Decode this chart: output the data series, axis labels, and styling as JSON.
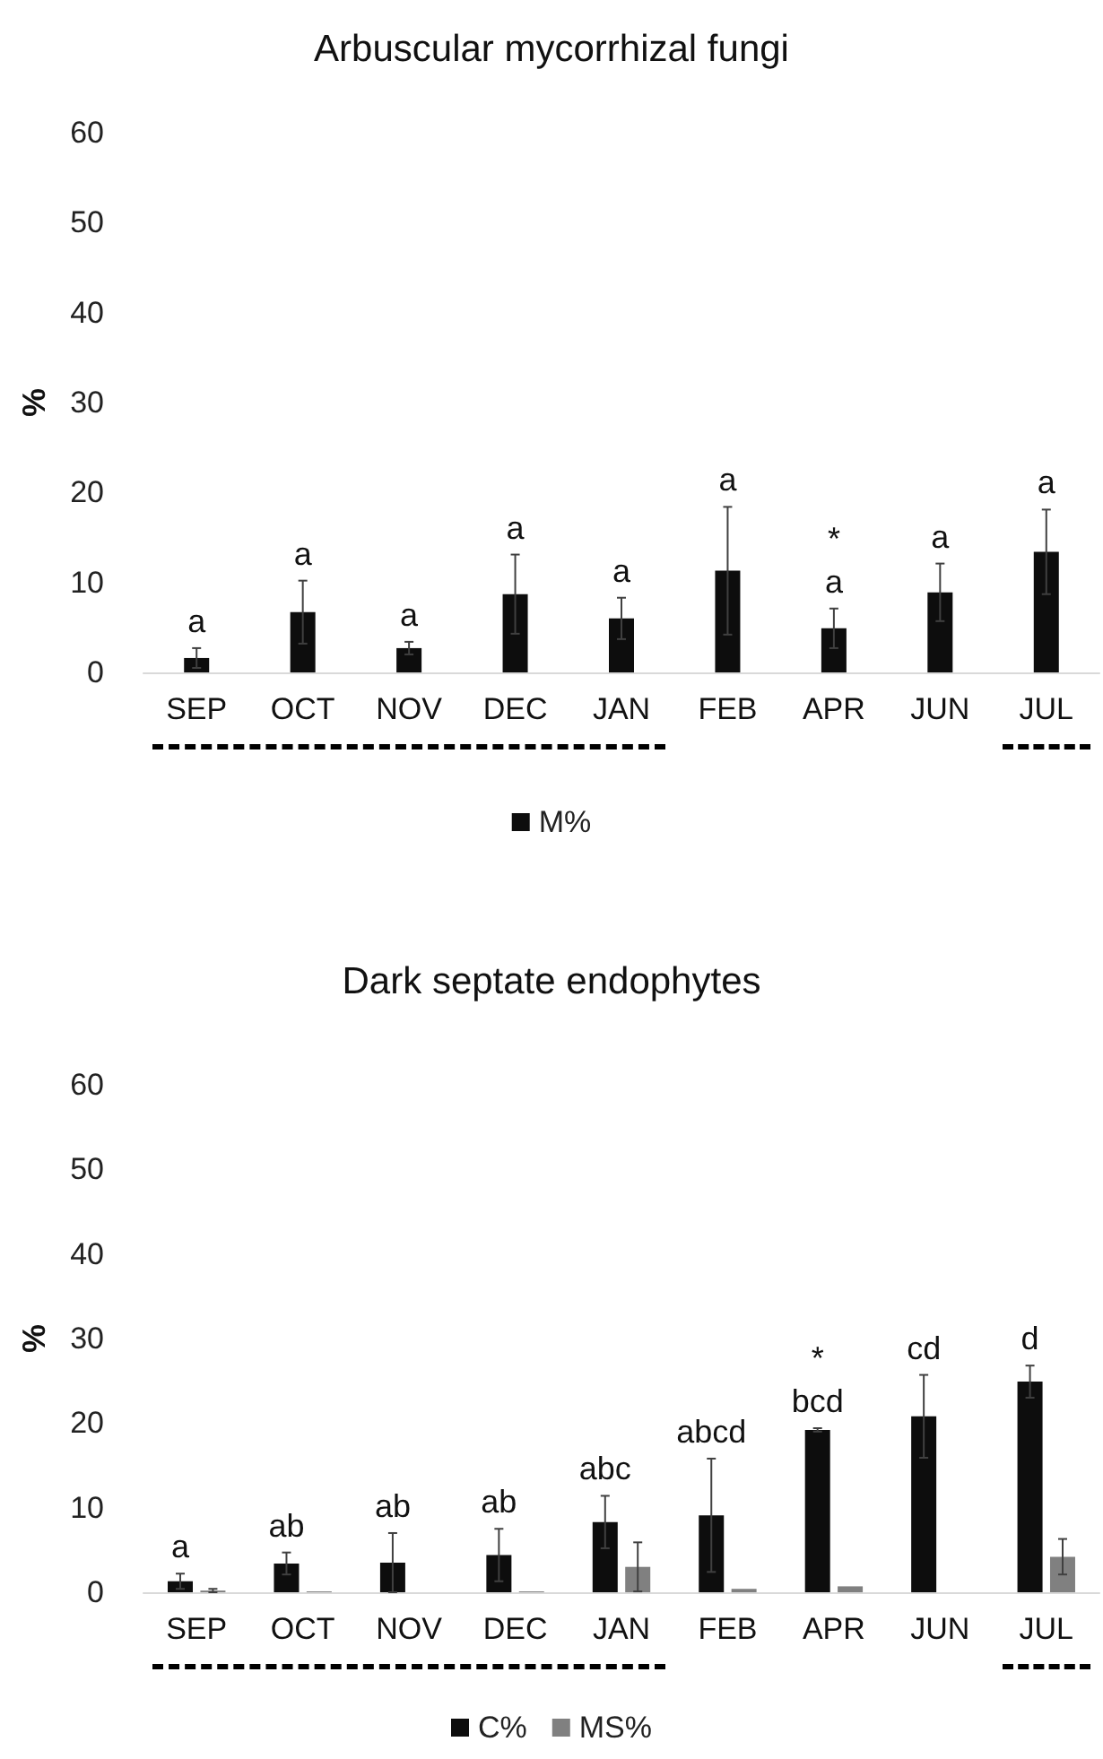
{
  "chart_data": [
    {
      "type": "bar",
      "title": "Arbuscular mycorrhizal fungi",
      "ylabel": "%",
      "categories": [
        "SEP",
        "OCT",
        "NOV",
        "DEC",
        "JAN",
        "FEB",
        "APR",
        "JUN",
        "JUL"
      ],
      "series": [
        {
          "name": "M%",
          "color": "#0d0d0d",
          "values": [
            1.6,
            6.7,
            2.7,
            8.7,
            6.0,
            11.3,
            4.9,
            8.9,
            13.4
          ],
          "errors": [
            1.1,
            3.5,
            0.7,
            4.4,
            2.3,
            7.1,
            2.2,
            3.2,
            4.7
          ],
          "value_labels": [
            "a",
            "a",
            "a",
            "a",
            "a",
            "a",
            "*\na",
            "a",
            "a"
          ]
        }
      ],
      "ylim": [
        0,
        60
      ],
      "yticks": [
        0,
        10,
        20,
        30,
        40,
        50,
        60
      ],
      "grid": false,
      "legend": "bottom"
    },
    {
      "type": "bar",
      "title": "Dark septate endophytes",
      "ylabel": "%",
      "categories": [
        "SEP",
        "OCT",
        "NOV",
        "DEC",
        "JAN",
        "FEB",
        "APR",
        "JUN",
        "JUL"
      ],
      "series": [
        {
          "name": "C%",
          "color": "#0d0d0d",
          "values": [
            1.3,
            3.4,
            3.5,
            4.4,
            8.3,
            9.1,
            19.2,
            20.8,
            24.9
          ],
          "errors": [
            0.9,
            1.3,
            3.5,
            3.1,
            3.1,
            6.7,
            0.2,
            4.9,
            1.9
          ],
          "value_labels": [
            "a",
            "ab",
            "ab",
            "ab",
            "abc",
            "abcd",
            "*\nbcd",
            "cd",
            "d"
          ]
        },
        {
          "name": "MS%",
          "color": "#808080",
          "values": [
            0.2,
            0.1,
            0.0,
            0.1,
            3.0,
            0.4,
            0.7,
            0.0,
            4.2
          ],
          "errors": [
            0.2,
            null,
            null,
            null,
            2.9,
            null,
            null,
            null,
            2.1
          ]
        }
      ],
      "ylim": [
        0,
        60
      ],
      "yticks": [
        0,
        10,
        20,
        30,
        40,
        50,
        60
      ],
      "grid": false,
      "legend": "bottom"
    }
  ]
}
